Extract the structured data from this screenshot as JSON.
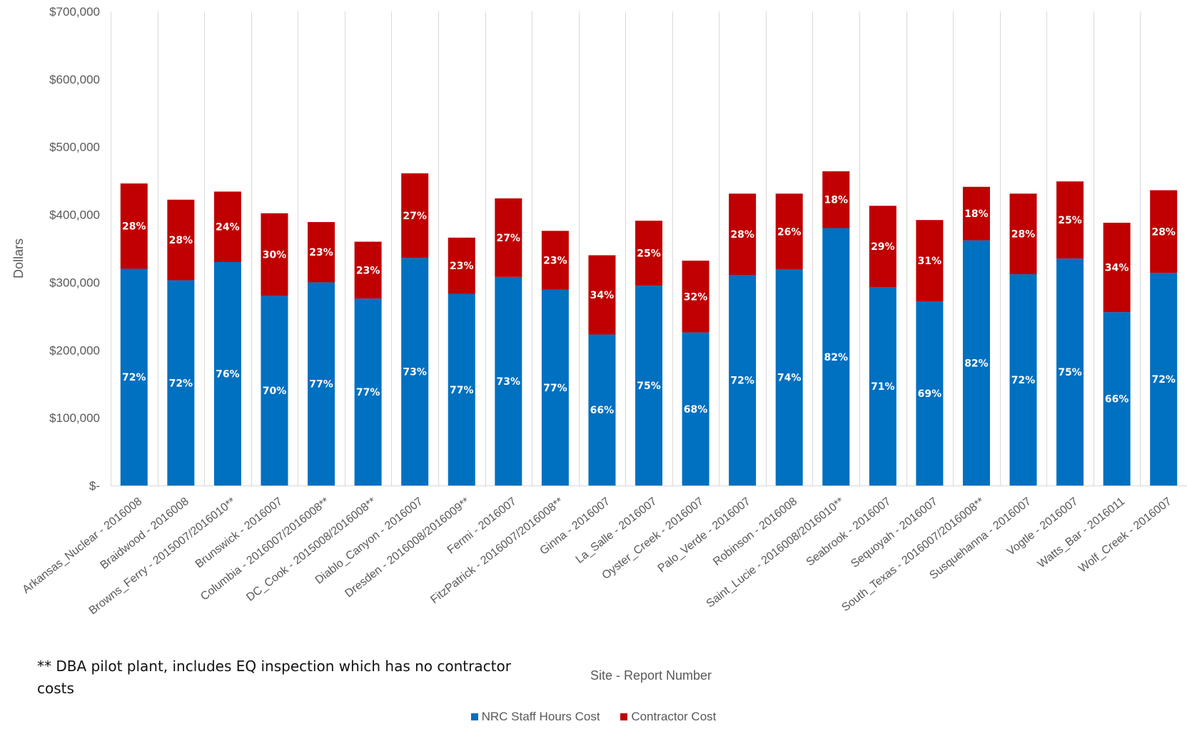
{
  "chart_data": {
    "type": "bar",
    "stacked": true,
    "xlabel": "Site - Report Number",
    "ylabel": "Dollars",
    "ylim": [
      0,
      700000
    ],
    "yticks": [
      {
        "value": 0,
        "label": "$-"
      },
      {
        "value": 100000,
        "label": "$100,000"
      },
      {
        "value": 200000,
        "label": "$200,000"
      },
      {
        "value": 300000,
        "label": "$300,000"
      },
      {
        "value": 400000,
        "label": "$400,000"
      },
      {
        "value": 500000,
        "label": "$500,000"
      },
      {
        "value": 600000,
        "label": "$600,000"
      },
      {
        "value": 700000,
        "label": "$700,000"
      }
    ],
    "grid": "vertical-lines",
    "legend_position": "bottom",
    "categories": [
      "Arkansas_Nuclear - 2016008",
      "Braidwood - 2016008",
      "Browns_Ferry - 2015007/2016010**",
      "Brunswick - 2016007",
      "Columbia - 2016007/2016008**",
      "DC_Cook - 2015008/2016008**",
      "Diablo_Canyon - 2016007",
      "Dresden - 2016008/2016009**",
      "Fermi - 2016007",
      "FitzPatrick - 2016007/2016008**",
      "Ginna - 2016007",
      "La_Salle - 2016007",
      "Oyster_Creek - 2016007",
      "Palo_Verde - 2016007",
      "Robinson - 2016008",
      "Saint_Lucie - 2016008/2016010**",
      "Seabrook - 2016007",
      "Sequoyah - 2016007",
      "South_Texas - 2016007/2016008**",
      "Susquehanna - 2016007",
      "Vogtle - 2016007",
      "Watts_Bar - 2016011",
      "Wolf_Creek - 2016007"
    ],
    "series": [
      {
        "name": "NRC Staff Hours Cost",
        "color": "#0070C0",
        "values": [
          320000,
          303000,
          330000,
          280000,
          300000,
          276000,
          336000,
          283000,
          308000,
          289000,
          223000,
          295000,
          226000,
          311000,
          319000,
          380000,
          293000,
          272000,
          362000,
          312000,
          335000,
          256000,
          314000
        ],
        "labels": [
          "72%",
          "72%",
          "76%",
          "70%",
          "77%",
          "77%",
          "73%",
          "77%",
          "73%",
          "77%",
          "66%",
          "75%",
          "68%",
          "72%",
          "74%",
          "82%",
          "71%",
          "69%",
          "82%",
          "72%",
          "75%",
          "66%",
          "72%"
        ]
      },
      {
        "name": "Contractor Cost",
        "color": "#C00000",
        "values": [
          126000,
          119000,
          104000,
          122000,
          89000,
          84000,
          125000,
          83000,
          116000,
          87000,
          117000,
          96000,
          106000,
          120000,
          112000,
          84000,
          120000,
          120000,
          79000,
          119000,
          114000,
          132000,
          122000
        ],
        "labels": [
          "28%",
          "28%",
          "24%",
          "30%",
          "23%",
          "23%",
          "27%",
          "23%",
          "27%",
          "23%",
          "34%",
          "25%",
          "32%",
          "28%",
          "26%",
          "18%",
          "29%",
          "31%",
          "18%",
          "28%",
          "25%",
          "34%",
          "28%"
        ]
      }
    ]
  },
  "footnote": "** DBA pilot plant, includes EQ inspection which has no contractor costs",
  "legend": {
    "items": [
      "NRC Staff Hours Cost",
      "Contractor Cost"
    ]
  }
}
